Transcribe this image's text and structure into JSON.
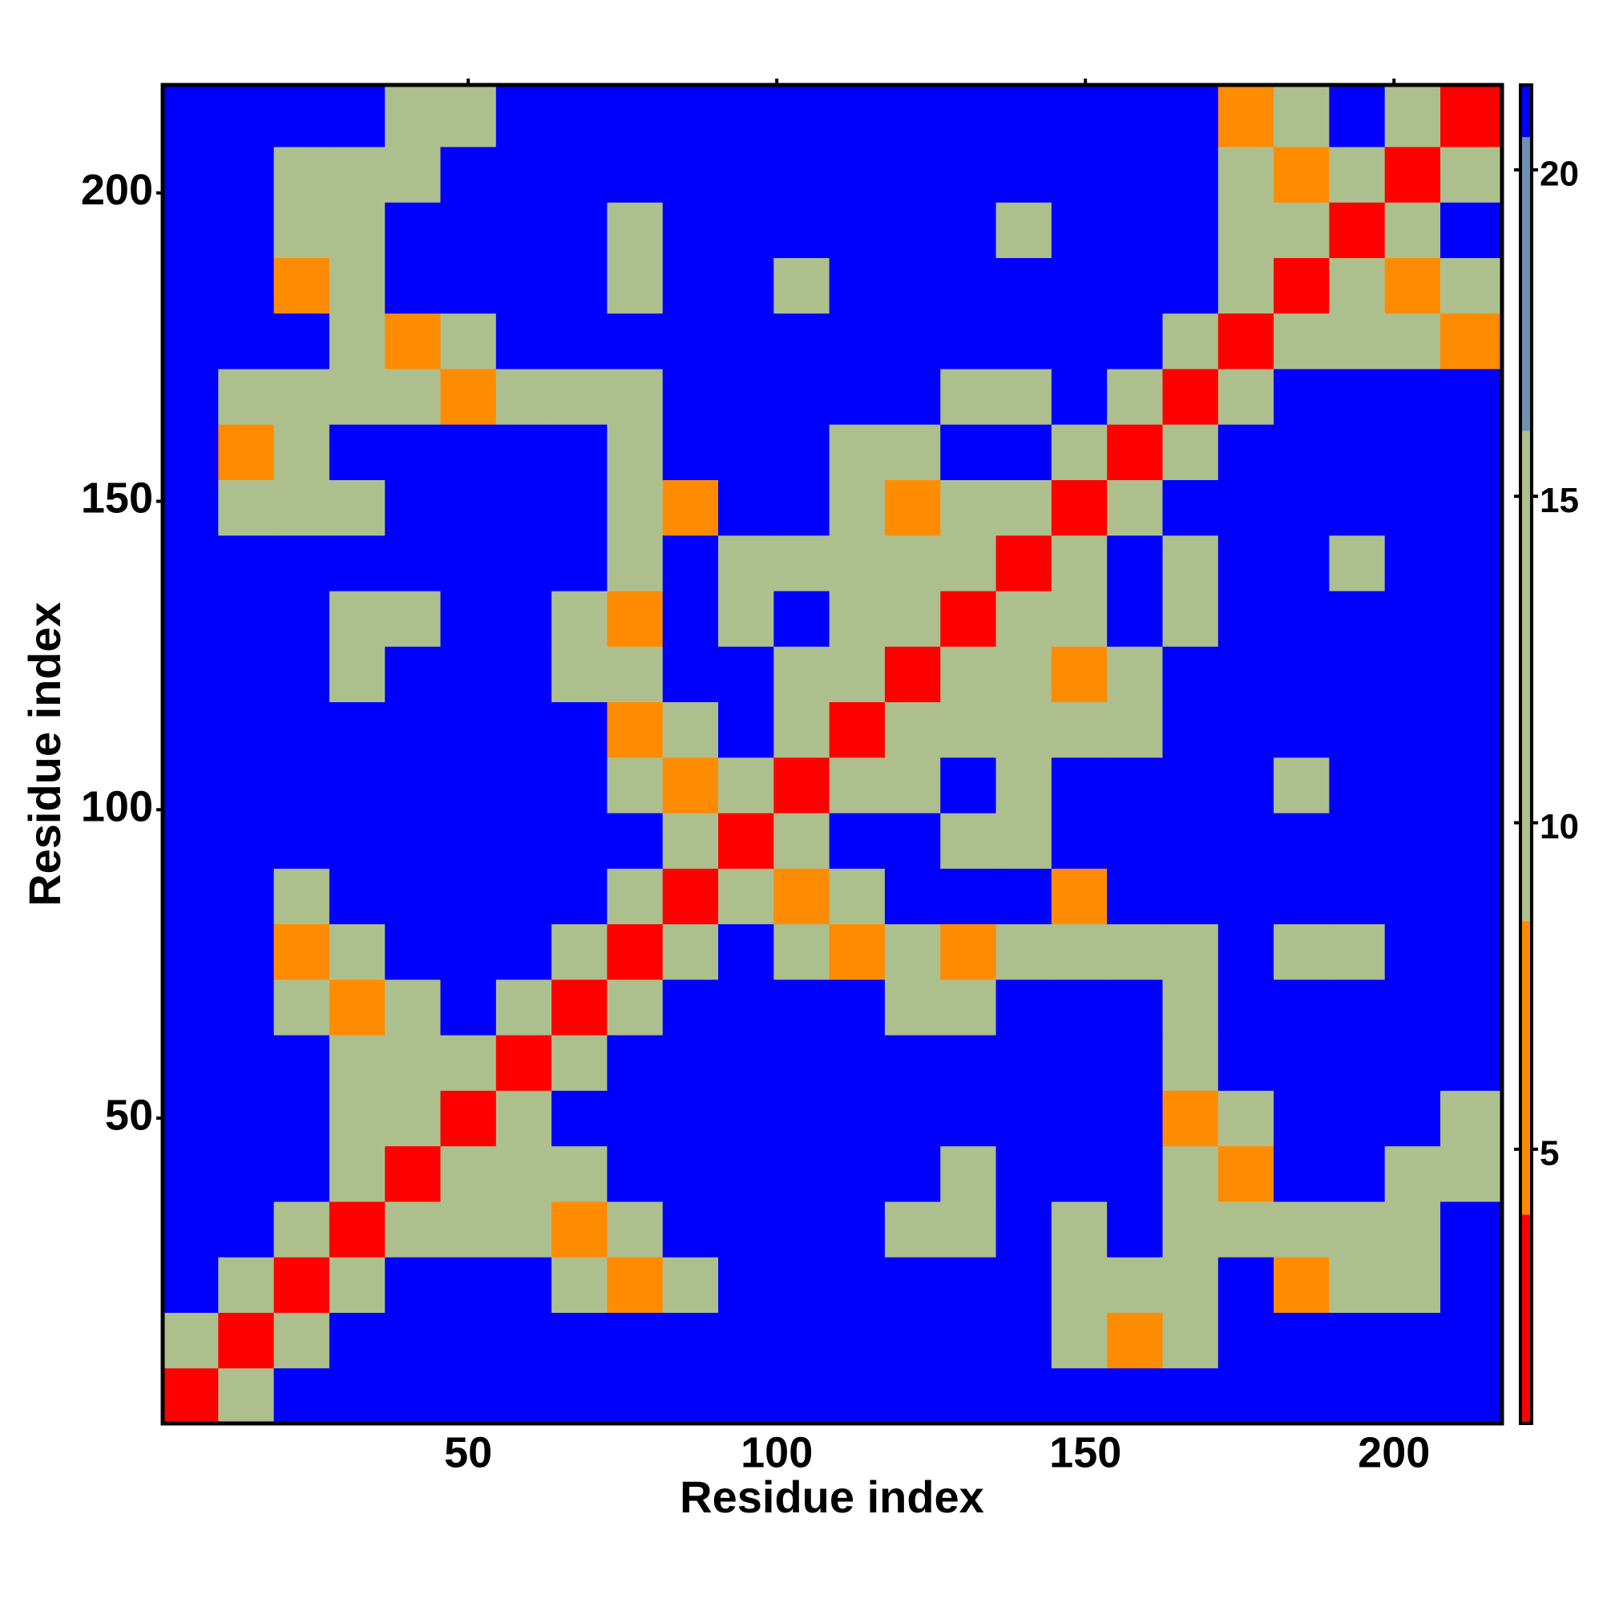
{
  "chart_data": {
    "type": "heatmap",
    "x_label": "Residue index",
    "y_label": "Residue index",
    "xlim": [
      0.5,
      217.5
    ],
    "ylim": [
      0.5,
      217.5
    ],
    "xticks": [
      50,
      100,
      150,
      200
    ],
    "yticks": [
      50,
      100,
      150,
      200
    ],
    "x_bins": [
      0.5,
      9.5,
      18.5,
      27.5,
      36.5,
      45.5,
      54.5,
      63.5,
      72.5,
      81.5,
      90.5,
      99.5,
      108.5,
      117.5,
      126.5,
      135.5,
      144.5,
      153.5,
      162.5,
      171.5,
      180.5,
      189.5,
      198.5,
      207.5,
      217.5
    ],
    "y_bins": [
      0.5,
      9.5,
      18.5,
      27.5,
      36.5,
      45.5,
      54.5,
      63.5,
      72.5,
      81.5,
      90.5,
      99.5,
      108.5,
      117.5,
      126.5,
      135.5,
      144.5,
      153.5,
      162.5,
      171.5,
      180.5,
      189.5,
      198.5,
      207.5,
      217.5
    ],
    "values": [
      [
        3,
        11,
        21,
        21,
        21,
        21,
        21,
        21,
        21,
        21,
        21,
        21,
        21,
        21,
        21,
        21,
        21,
        21,
        21,
        21,
        21,
        21,
        21,
        21
      ],
      [
        11,
        3,
        11,
        21,
        21,
        21,
        21,
        21,
        21,
        21,
        21,
        21,
        21,
        21,
        21,
        21,
        12,
        7,
        12,
        21,
        21,
        21,
        21,
        21
      ],
      [
        21,
        11,
        3,
        11,
        21,
        21,
        21,
        12,
        7,
        12,
        21,
        21,
        21,
        21,
        21,
        21,
        12,
        12,
        12,
        21,
        7,
        12,
        12,
        21
      ],
      [
        21,
        21,
        11,
        3,
        11,
        12,
        12,
        7,
        12,
        21,
        21,
        21,
        21,
        12,
        12,
        21,
        12,
        21,
        12,
        12,
        12,
        12,
        12,
        21
      ],
      [
        21,
        21,
        21,
        11,
        3,
        11,
        12,
        12,
        21,
        21,
        21,
        21,
        21,
        21,
        12,
        21,
        21,
        21,
        12,
        7,
        21,
        21,
        12,
        12
      ],
      [
        21,
        21,
        21,
        12,
        11,
        3,
        11,
        21,
        21,
        21,
        21,
        21,
        21,
        21,
        21,
        21,
        21,
        21,
        7,
        12,
        21,
        21,
        21,
        12
      ],
      [
        21,
        21,
        21,
        12,
        12,
        11,
        3,
        11,
        21,
        21,
        21,
        21,
        21,
        21,
        21,
        21,
        21,
        21,
        12,
        21,
        21,
        21,
        21,
        21
      ],
      [
        21,
        21,
        12,
        7,
        12,
        21,
        11,
        3,
        11,
        21,
        21,
        21,
        21,
        12,
        12,
        21,
        21,
        21,
        12,
        21,
        21,
        21,
        21,
        21
      ],
      [
        21,
        21,
        7,
        12,
        21,
        21,
        21,
        11,
        3,
        11,
        21,
        12,
        7,
        12,
        7,
        12,
        12,
        12,
        12,
        21,
        12,
        12,
        21,
        21
      ],
      [
        21,
        21,
        12,
        21,
        21,
        21,
        21,
        21,
        11,
        3,
        11,
        7,
        12,
        21,
        21,
        21,
        7,
        21,
        21,
        21,
        21,
        21,
        21,
        21
      ],
      [
        21,
        21,
        21,
        21,
        21,
        21,
        21,
        21,
        21,
        11,
        3,
        11,
        21,
        21,
        12,
        12,
        21,
        21,
        21,
        21,
        21,
        21,
        21,
        21
      ],
      [
        21,
        21,
        21,
        21,
        21,
        21,
        21,
        21,
        12,
        7,
        11,
        3,
        11,
        12,
        21,
        12,
        21,
        21,
        21,
        21,
        12,
        21,
        21,
        21
      ],
      [
        21,
        21,
        21,
        21,
        21,
        21,
        21,
        21,
        7,
        12,
        21,
        11,
        3,
        11,
        12,
        12,
        12,
        12,
        21,
        21,
        21,
        21,
        21,
        21
      ],
      [
        21,
        21,
        21,
        12,
        21,
        21,
        21,
        12,
        12,
        21,
        21,
        12,
        11,
        3,
        11,
        12,
        7,
        12,
        21,
        21,
        21,
        21,
        21,
        21
      ],
      [
        21,
        21,
        21,
        12,
        12,
        21,
        21,
        12,
        7,
        21,
        12,
        21,
        12,
        11,
        3,
        11,
        12,
        21,
        12,
        21,
        21,
        21,
        21,
        21
      ],
      [
        21,
        21,
        21,
        21,
        21,
        21,
        21,
        21,
        12,
        21,
        12,
        12,
        12,
        12,
        11,
        3,
        11,
        21,
        12,
        21,
        21,
        12,
        21,
        21
      ],
      [
        21,
        12,
        12,
        12,
        21,
        21,
        21,
        21,
        12,
        7,
        21,
        21,
        12,
        7,
        12,
        11,
        3,
        11,
        21,
        21,
        21,
        21,
        21,
        21
      ],
      [
        21,
        7,
        12,
        21,
        21,
        21,
        21,
        21,
        12,
        21,
        21,
        21,
        12,
        12,
        21,
        21,
        11,
        3,
        11,
        21,
        21,
        21,
        21,
        21
      ],
      [
        21,
        12,
        12,
        12,
        12,
        7,
        12,
        12,
        12,
        21,
        21,
        21,
        21,
        21,
        12,
        12,
        21,
        11,
        3,
        11,
        21,
        21,
        21,
        21
      ],
      [
        21,
        21,
        21,
        12,
        7,
        12,
        21,
        21,
        21,
        21,
        21,
        21,
        21,
        21,
        21,
        21,
        21,
        21,
        11,
        3,
        11,
        12,
        12,
        7
      ],
      [
        21,
        21,
        7,
        12,
        21,
        21,
        21,
        21,
        12,
        21,
        21,
        12,
        21,
        21,
        21,
        21,
        21,
        21,
        21,
        11,
        3,
        11,
        7,
        12
      ],
      [
        21,
        21,
        12,
        12,
        21,
        21,
        21,
        21,
        12,
        21,
        21,
        21,
        21,
        21,
        21,
        12,
        21,
        21,
        21,
        12,
        11,
        3,
        11,
        21
      ],
      [
        21,
        21,
        12,
        12,
        12,
        21,
        21,
        21,
        21,
        21,
        21,
        21,
        21,
        21,
        21,
        21,
        21,
        21,
        21,
        12,
        7,
        11,
        3,
        11
      ],
      [
        21,
        21,
        21,
        21,
        12,
        12,
        21,
        21,
        21,
        21,
        21,
        21,
        21,
        21,
        21,
        21,
        21,
        21,
        21,
        7,
        12,
        21,
        11,
        3
      ]
    ],
    "colorbar": {
      "lim": [
        0.8,
        21.3
      ],
      "ticks": [
        5,
        10,
        15,
        20
      ],
      "colormap": [
        [
          0.8,
          "#ff0000"
        ],
        [
          4,
          "#ff8c00"
        ],
        [
          8.5,
          "#aebf8e"
        ],
        [
          16,
          "#7090b0"
        ],
        [
          20.5,
          "#0000ff"
        ]
      ]
    }
  }
}
